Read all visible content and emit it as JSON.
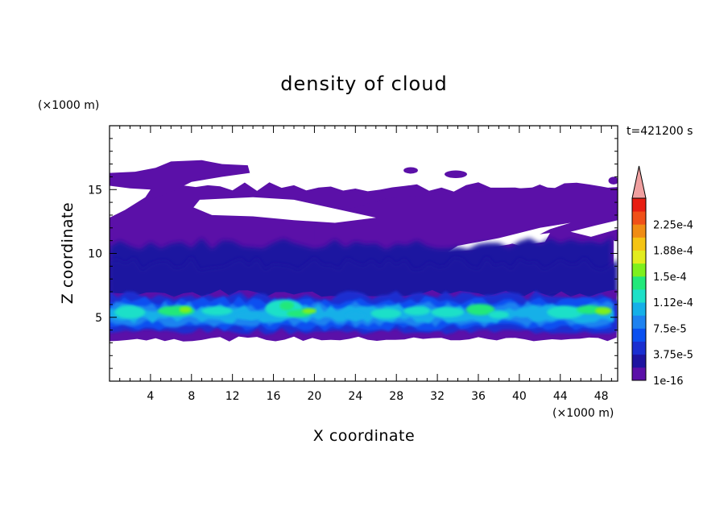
{
  "chart_data": {
    "type": "heatmap",
    "title": "density of cloud",
    "xlabel": "X coordinate",
    "ylabel": "Z coordinate",
    "x_unit": "(×1000 m)",
    "y_unit": "(×1000 m)",
    "time_label": "t=421200 s",
    "xlim": [
      0,
      49.6
    ],
    "ylim": [
      0,
      20
    ],
    "x_ticks": [
      4,
      8,
      12,
      16,
      20,
      24,
      28,
      32,
      36,
      40,
      44,
      48
    ],
    "y_ticks": [
      5,
      10,
      15
    ],
    "colorbar": {
      "labels": [
        "1e-16",
        "3.75e-5",
        "7.5e-5",
        "1.12e-4",
        "1.5e-4",
        "1.88e-4",
        "2.25e-4"
      ],
      "levels": [
        1e-16,
        1.875e-05,
        3.75e-05,
        5.625e-05,
        7.5e-05,
        9.375e-05,
        0.0001125,
        0.00013125,
        0.00015,
        0.00016875,
        0.0001875,
        0.00020625,
        0.000225,
        0.00024375
      ],
      "colors": [
        "#5b10a8",
        "#1e14a0",
        "#1a2fd0",
        "#0a50f0",
        "#1e82f0",
        "#15b0e8",
        "#1ee0c8",
        "#22e87a",
        "#7ef01e",
        "#e2ec1e",
        "#f5c414",
        "#f08c14",
        "#f05018",
        "#e81e12"
      ],
      "extend_color": "#f0a0a0"
    },
    "layers": {
      "upper_cloud_z": [
        11,
        17
      ],
      "mid_cloud_z": [
        6.5,
        11
      ],
      "dense_core_z": [
        3.8,
        6.5
      ],
      "peak_value_approx": 0.00015
    }
  }
}
